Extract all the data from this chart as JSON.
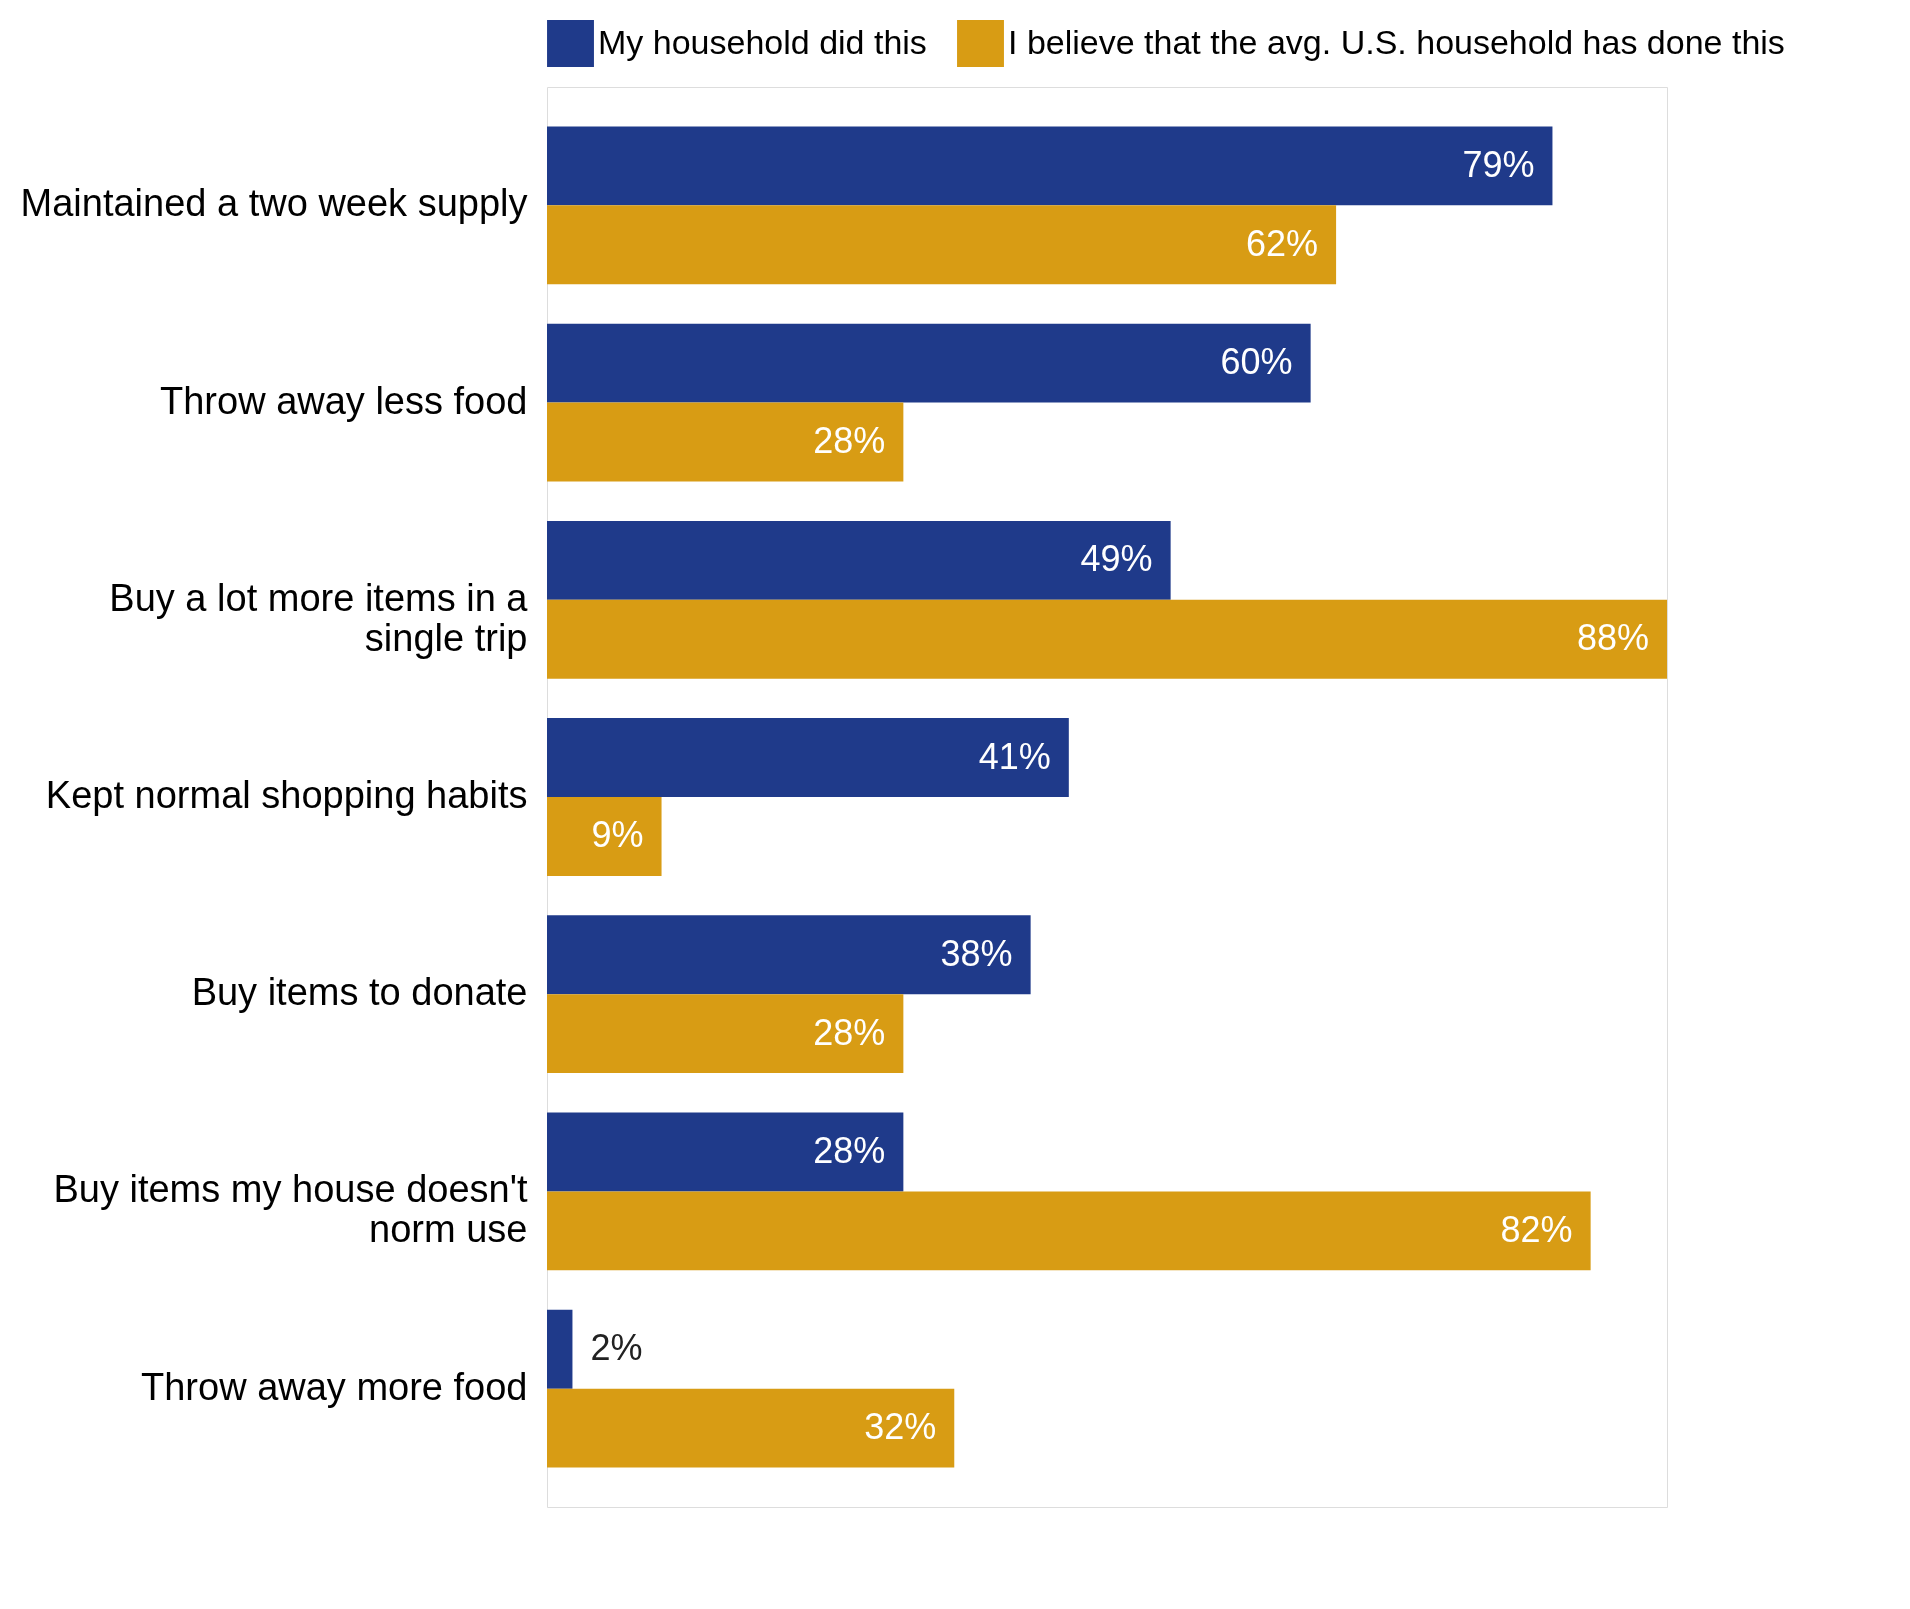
{
  "chart_data": {
    "type": "bar",
    "orientation": "horizontal",
    "categories": [
      "Maintained a two week supply",
      "Throw away less food",
      "Buy a lot more items in a single trip",
      "Kept normal shopping habits",
      "Buy items to donate",
      "Buy items my house doesn't norm use",
      "Throw away more food"
    ],
    "series": [
      {
        "name": "My household did this",
        "color": "#1f3a8a",
        "values": [
          79,
          60,
          49,
          41,
          38,
          28,
          2
        ],
        "value_labels": [
          "79%",
          "60%",
          "49%",
          "41%",
          "38%",
          "28%",
          "2%"
        ]
      },
      {
        "name": "I believe that the avg. U.S. household has done this",
        "color": "#d89c14",
        "values": [
          62,
          28,
          88,
          9,
          28,
          82,
          32
        ],
        "value_labels": [
          "62%",
          "28%",
          "88%",
          "9%",
          "28%",
          "82%",
          "32%"
        ]
      }
    ],
    "legend": "top",
    "tick_labels": "y",
    "grid": false
  }
}
